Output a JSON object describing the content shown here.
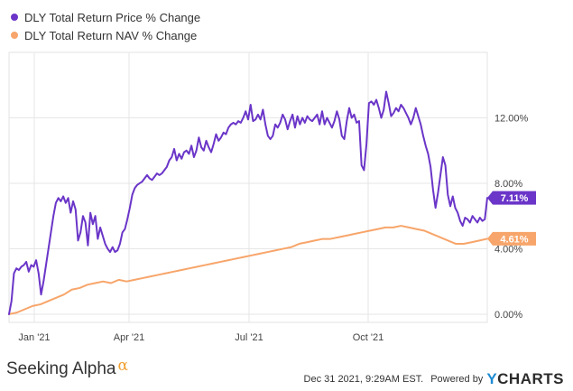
{
  "legend": [
    {
      "label": "DLY Total Return Price % Change",
      "color": "#6a35c8"
    },
    {
      "label": "DLY Total Return NAV % Change",
      "color": "#f7a56a"
    }
  ],
  "footer": {
    "brand_left": "Seeking Alpha",
    "brand_left_symbol": "α",
    "timestamp": "Dec 31 2021, 9:29AM EST.",
    "powered_by": "Powered by",
    "brand_right_y": "Y",
    "brand_right_rest": "CHARTS"
  },
  "chart_data": {
    "type": "line",
    "x_tick_labels": [
      "Jan '21",
      "Apr '21",
      "Jul '21",
      "Oct '21"
    ],
    "y_tick_labels": [
      "0.00%",
      "4.00%",
      "8.00%",
      "12.00%"
    ],
    "ylim": [
      -0.5,
      16
    ],
    "grid": true,
    "legend_position": "top-left",
    "series": [
      {
        "name": "DLY Total Return Price % Change",
        "color": "#6a35c8",
        "end_label": "7.11%",
        "values": [
          0.0,
          0.8,
          2.5,
          2.8,
          2.7,
          2.9,
          3.0,
          3.2,
          2.6,
          3.0,
          2.9,
          3.3,
          2.5,
          1.2,
          2.0,
          3.0,
          4.0,
          5.0,
          6.0,
          6.8,
          7.1,
          6.9,
          7.2,
          6.8,
          7.1,
          6.2,
          6.9,
          6.4,
          4.5,
          5.0,
          6.0,
          5.6,
          4.2,
          6.2,
          5.5,
          6.0,
          4.6,
          5.3,
          4.8,
          4.3,
          4.0,
          3.8,
          4.1,
          3.8,
          3.9,
          4.3,
          5.0,
          5.2,
          5.8,
          6.5,
          7.3,
          7.7,
          7.9,
          8.0,
          8.1,
          8.3,
          8.5,
          8.3,
          8.2,
          8.4,
          8.6,
          8.5,
          8.6,
          8.8,
          9.0,
          9.4,
          9.6,
          10.1,
          9.4,
          9.8,
          9.5,
          9.9,
          10.0,
          9.8,
          10.3,
          9.6,
          10.0,
          10.8,
          10.2,
          10.0,
          10.6,
          10.2,
          9.9,
          10.4,
          11.0,
          10.6,
          10.8,
          11.1,
          11.0,
          11.4,
          11.6,
          11.7,
          11.6,
          11.8,
          11.7,
          12.0,
          12.4,
          11.9,
          12.8,
          11.8,
          11.9,
          12.2,
          11.9,
          12.5,
          11.6,
          10.9,
          10.7,
          10.9,
          11.6,
          11.4,
          11.7,
          12.2,
          11.9,
          11.3,
          11.8,
          12.2,
          11.4,
          12.1,
          11.6,
          12.0,
          11.7,
          12.1,
          11.9,
          11.8,
          12.0,
          12.2,
          11.6,
          12.4,
          11.6,
          12.0,
          11.7,
          11.4,
          11.8,
          12.4,
          11.9,
          10.9,
          10.7,
          11.8,
          12.6,
          12.0,
          12.2,
          11.7,
          11.8,
          9.1,
          8.8,
          10.4,
          12.9,
          13.0,
          12.8,
          13.1,
          12.6,
          12.0,
          12.5,
          13.6,
          12.9,
          12.1,
          12.3,
          12.6,
          12.4,
          12.8,
          12.6,
          12.3,
          12.0,
          11.6,
          12.0,
          12.6,
          12.1,
          11.6,
          10.9,
          10.3,
          9.8,
          9.0,
          7.6,
          6.5,
          7.4,
          8.5,
          9.6,
          9.1,
          7.3,
          6.6,
          7.2,
          6.5,
          6.2,
          5.7,
          5.4,
          5.9,
          5.8,
          5.6,
          6.0,
          5.8,
          5.6,
          5.9,
          5.7,
          5.8,
          7.11
        ]
      },
      {
        "name": "DLY Total Return NAV % Change",
        "color": "#f7a56a",
        "end_label": "4.61%",
        "values": [
          0.0,
          0.1,
          0.3,
          0.5,
          0.6,
          0.8,
          1.0,
          1.2,
          1.5,
          1.6,
          1.8,
          1.9,
          2.0,
          1.9,
          2.1,
          2.0,
          2.1,
          2.2,
          2.3,
          2.4,
          2.5,
          2.6,
          2.7,
          2.8,
          2.9,
          3.0,
          3.1,
          3.2,
          3.3,
          3.4,
          3.5,
          3.6,
          3.7,
          3.8,
          3.9,
          4.0,
          4.1,
          4.3,
          4.4,
          4.5,
          4.6,
          4.6,
          4.7,
          4.8,
          4.9,
          5.0,
          5.1,
          5.2,
          5.3,
          5.3,
          5.4,
          5.3,
          5.2,
          5.1,
          4.9,
          4.7,
          4.5,
          4.3,
          4.3,
          4.4,
          4.5,
          4.61
        ]
      }
    ]
  }
}
